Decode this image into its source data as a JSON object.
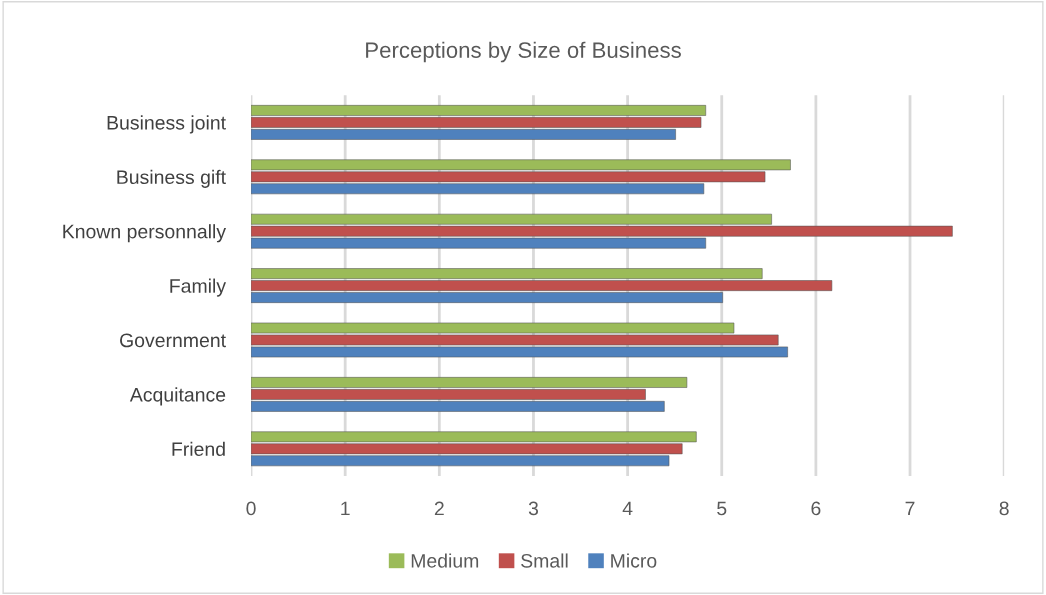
{
  "chart_data": {
    "type": "bar",
    "orientation": "horizontal",
    "title": "Perceptions by Size of Business",
    "categories": [
      "Business joint",
      "Business gift",
      "Known personnally",
      "Family",
      "Government",
      "Acquitance",
      "Friend"
    ],
    "series": [
      {
        "name": "Medium",
        "color": "#9bbb59",
        "values": [
          4.83,
          5.73,
          5.53,
          5.43,
          5.13,
          4.63,
          4.73
        ]
      },
      {
        "name": "Small",
        "color": "#c0504d",
        "values": [
          4.78,
          5.46,
          7.45,
          6.17,
          5.6,
          4.19,
          4.58
        ]
      },
      {
        "name": "Micro",
        "color": "#4f81bd",
        "values": [
          4.51,
          4.81,
          4.83,
          5.01,
          5.7,
          4.39,
          4.44
        ]
      }
    ],
    "xlim": [
      0,
      8
    ],
    "xticks": [
      0,
      1,
      2,
      3,
      4,
      5,
      6,
      7,
      8
    ],
    "grid": "x",
    "legend": "bottom"
  }
}
